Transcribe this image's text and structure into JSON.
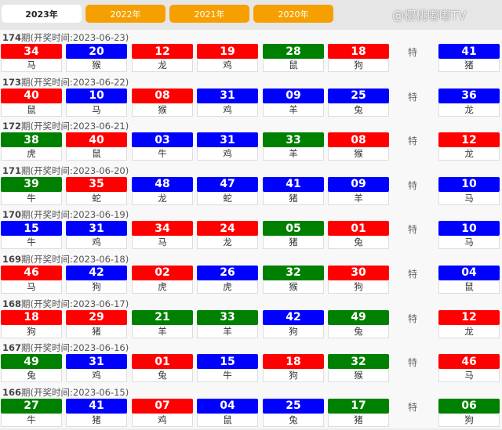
{
  "tabs": [
    {
      "label": "2023年",
      "active": true
    },
    {
      "label": "2022年"
    },
    {
      "label": "2021年"
    },
    {
      "label": "2020年"
    }
  ],
  "special_label": "特",
  "colors": {
    "r": "#ff0000",
    "b": "#0000ff",
    "g": "#008000",
    "tab": "#f5a000"
  },
  "watermark": "@樱桃嘟嘟TV",
  "draws": [
    {
      "period": "174",
      "date_text": "期(开奖时间:2023-06-23)",
      "balls": [
        [
          "34",
          "r",
          "马"
        ],
        [
          "20",
          "b",
          "猴"
        ],
        [
          "12",
          "r",
          "龙"
        ],
        [
          "19",
          "r",
          "鸡"
        ],
        [
          "28",
          "g",
          "鼠"
        ],
        [
          "18",
          "r",
          "狗"
        ]
      ],
      "special": [
        "41",
        "b",
        "猪"
      ]
    },
    {
      "period": "173",
      "date_text": "期(开奖时间:2023-06-22)",
      "balls": [
        [
          "40",
          "r",
          "鼠"
        ],
        [
          "10",
          "b",
          "马"
        ],
        [
          "08",
          "r",
          "猴"
        ],
        [
          "31",
          "b",
          "鸡"
        ],
        [
          "09",
          "b",
          "羊"
        ],
        [
          "25",
          "b",
          "兔"
        ]
      ],
      "special": [
        "36",
        "b",
        "龙"
      ]
    },
    {
      "period": "172",
      "date_text": "期(开奖时间:2023-06-21)",
      "balls": [
        [
          "38",
          "g",
          "虎"
        ],
        [
          "40",
          "r",
          "鼠"
        ],
        [
          "03",
          "b",
          "牛"
        ],
        [
          "31",
          "b",
          "鸡"
        ],
        [
          "33",
          "g",
          "羊"
        ],
        [
          "08",
          "r",
          "猴"
        ]
      ],
      "special": [
        "12",
        "r",
        "龙"
      ]
    },
    {
      "period": "171",
      "date_text": "期(开奖时间:2023-06-20)",
      "balls": [
        [
          "39",
          "g",
          "牛"
        ],
        [
          "35",
          "r",
          "蛇"
        ],
        [
          "48",
          "b",
          "龙"
        ],
        [
          "47",
          "b",
          "蛇"
        ],
        [
          "41",
          "b",
          "猪"
        ],
        [
          "09",
          "b",
          "羊"
        ]
      ],
      "special": [
        "10",
        "b",
        "马"
      ]
    },
    {
      "period": "170",
      "date_text": "期(开奖时间:2023-06-19)",
      "balls": [
        [
          "15",
          "b",
          "牛"
        ],
        [
          "31",
          "b",
          "鸡"
        ],
        [
          "34",
          "r",
          "马"
        ],
        [
          "24",
          "r",
          "龙"
        ],
        [
          "05",
          "g",
          "猪"
        ],
        [
          "01",
          "r",
          "兔"
        ]
      ],
      "special": [
        "10",
        "b",
        "马"
      ]
    },
    {
      "period": "169",
      "date_text": "期(开奖时间:2023-06-18)",
      "balls": [
        [
          "46",
          "r",
          "马"
        ],
        [
          "42",
          "b",
          "狗"
        ],
        [
          "02",
          "r",
          "虎"
        ],
        [
          "26",
          "b",
          "虎"
        ],
        [
          "32",
          "g",
          "猴"
        ],
        [
          "30",
          "r",
          "狗"
        ]
      ],
      "special": [
        "04",
        "b",
        "鼠"
      ]
    },
    {
      "period": "168",
      "date_text": "期(开奖时间:2023-06-17)",
      "balls": [
        [
          "18",
          "r",
          "狗"
        ],
        [
          "29",
          "r",
          "猪"
        ],
        [
          "21",
          "g",
          "羊"
        ],
        [
          "33",
          "g",
          "羊"
        ],
        [
          "42",
          "b",
          "狗"
        ],
        [
          "49",
          "g",
          "兔"
        ]
      ],
      "special": [
        "12",
        "r",
        "龙"
      ]
    },
    {
      "period": "167",
      "date_text": "期(开奖时间:2023-06-16)",
      "balls": [
        [
          "49",
          "g",
          "兔"
        ],
        [
          "31",
          "b",
          "鸡"
        ],
        [
          "01",
          "r",
          "兔"
        ],
        [
          "15",
          "b",
          "牛"
        ],
        [
          "18",
          "r",
          "狗"
        ],
        [
          "32",
          "g",
          "猴"
        ]
      ],
      "special": [
        "46",
        "r",
        "马"
      ]
    },
    {
      "period": "166",
      "date_text": "期(开奖时间:2023-06-15)",
      "balls": [
        [
          "27",
          "g",
          "牛"
        ],
        [
          "41",
          "b",
          "猪"
        ],
        [
          "07",
          "r",
          "鸡"
        ],
        [
          "04",
          "b",
          "鼠"
        ],
        [
          "25",
          "b",
          "兔"
        ],
        [
          "17",
          "g",
          "猪"
        ]
      ],
      "special": [
        "06",
        "g",
        "狗"
      ]
    }
  ]
}
